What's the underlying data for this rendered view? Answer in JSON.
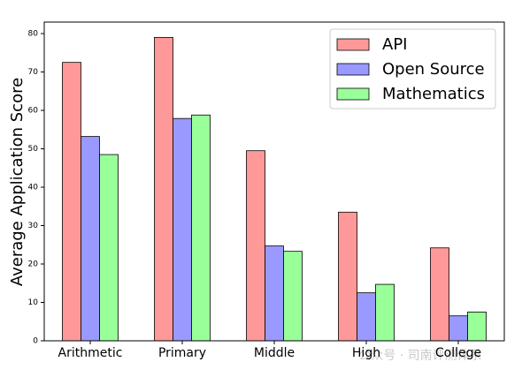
{
  "chart_data": {
    "type": "bar",
    "ylabel": "Average Application Score",
    "categories": [
      "Arithmetic",
      "Primary",
      "Middle",
      "High",
      "College"
    ],
    "series": [
      {
        "name": "API",
        "color": "#ff9999",
        "values": [
          72.5,
          79,
          49.5,
          33.5,
          24.2
        ]
      },
      {
        "name": "Open Source",
        "color": "#9999ff",
        "values": [
          53.2,
          57.9,
          24.7,
          12.5,
          6.5
        ]
      },
      {
        "name": "Mathematics",
        "color": "#99ff99",
        "values": [
          48.5,
          58.8,
          23.3,
          14.7,
          7.5
        ]
      }
    ],
    "ylim": [
      0,
      83
    ],
    "yticks": [
      0,
      10,
      20,
      30,
      40,
      50,
      60,
      70,
      80
    ],
    "legend": "upper right",
    "watermark": "公众号 · 司南评测体系"
  }
}
